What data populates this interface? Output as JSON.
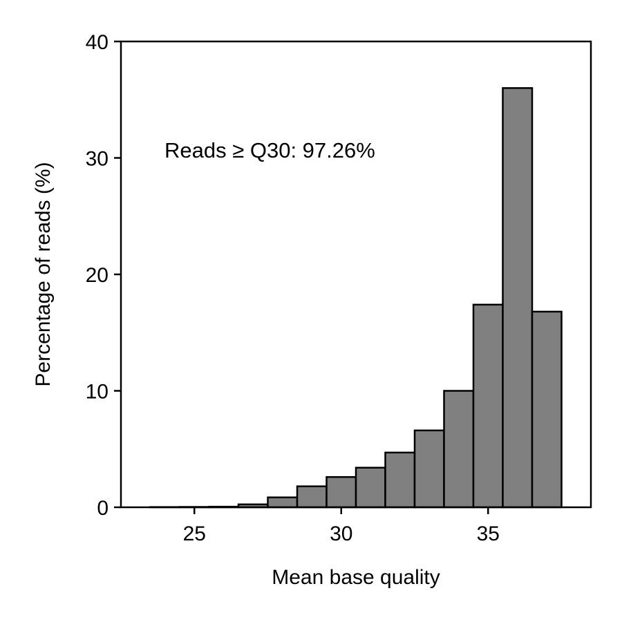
{
  "chart_data": {
    "type": "bar",
    "title": "",
    "xlabel": "Mean base quality",
    "ylabel": "Percentage of reads (%)",
    "xlim": [
      22.5,
      38.5
    ],
    "ylim": [
      0,
      40
    ],
    "xticks": [
      25,
      30,
      35
    ],
    "yticks": [
      0,
      10,
      20,
      30,
      40
    ],
    "bin_width": 1,
    "bins": [
      {
        "x": 24,
        "value": 0.02
      },
      {
        "x": 25,
        "value": 0.03
      },
      {
        "x": 26,
        "value": 0.05
      },
      {
        "x": 27,
        "value": 0.25
      },
      {
        "x": 28,
        "value": 0.85
      },
      {
        "x": 29,
        "value": 1.8
      },
      {
        "x": 30,
        "value": 2.6
      },
      {
        "x": 31,
        "value": 3.4
      },
      {
        "x": 32,
        "value": 4.7
      },
      {
        "x": 33,
        "value": 6.6
      },
      {
        "x": 34,
        "value": 10.0
      },
      {
        "x": 35,
        "value": 17.4
      },
      {
        "x": 36,
        "value": 36.0
      },
      {
        "x": 37,
        "value": 16.8
      }
    ],
    "bar_color": "#808080",
    "edge_color": "#000000",
    "annotation": "Reads ≥ Q30: 97.26%",
    "grid": false,
    "legend": false
  }
}
